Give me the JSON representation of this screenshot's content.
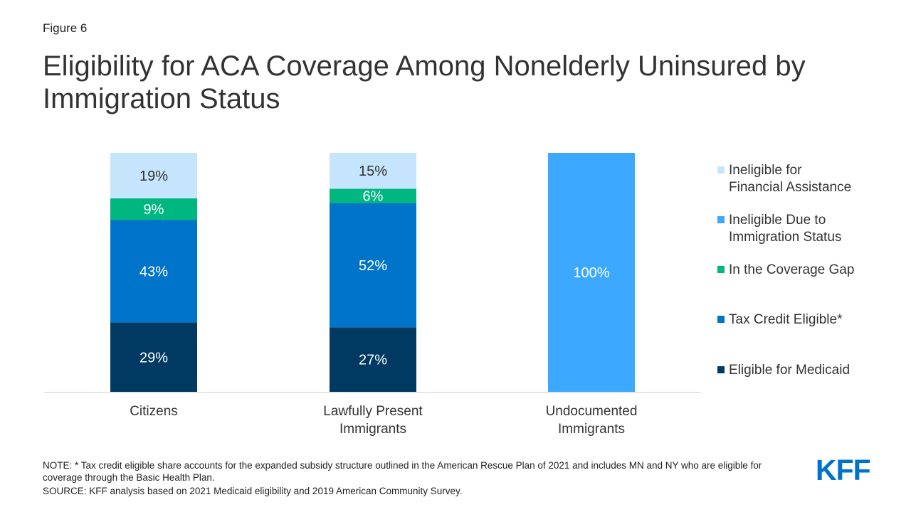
{
  "figure_label": "Figure 6",
  "title": "Eligibility for ACA Coverage Among Nonelderly Uninsured by Immigration Status",
  "note": "NOTE: * Tax credit eligible share accounts for the expanded subsidy structure outlined in the American Rescue Plan of 2021 and includes MN and NY who are eligible for coverage through the Basic Health Plan.",
  "source": "SOURCE: KFF analysis based on 2021 Medicaid eligibility and 2019 American Community Survey.",
  "logo_text": "KFF",
  "chart_data": {
    "type": "bar",
    "stacked": true,
    "title": "",
    "xlabel": "",
    "ylabel": "",
    "ylim": [
      0,
      100
    ],
    "grid": false,
    "legend_position": "right",
    "categories": [
      [
        "Citizens"
      ],
      [
        "Lawfully Present",
        "Immigrants"
      ],
      [
        "Undocumented",
        "Immigrants"
      ]
    ],
    "series": [
      {
        "name": "Eligible for Medicaid",
        "color": "#003a63",
        "values": [
          29,
          27,
          0
        ],
        "labels": [
          "29%",
          "27%",
          ""
        ],
        "label_color": "#ffffff"
      },
      {
        "name": "Tax Credit Eligible*",
        "color": "#0074c8",
        "values": [
          43,
          52,
          0
        ],
        "labels": [
          "43%",
          "52%",
          ""
        ],
        "label_color": "#ffffff"
      },
      {
        "name": "In the Coverage Gap",
        "color": "#00b780",
        "values": [
          9,
          6,
          0
        ],
        "labels": [
          "9%",
          "6%",
          ""
        ],
        "label_color": "#ffffff"
      },
      {
        "name": "Ineligible Due to Immigration Status",
        "color": "#3ca8ff",
        "values": [
          0,
          0,
          100
        ],
        "labels": [
          "",
          "",
          "100%"
        ],
        "label_color": "#ffffff"
      },
      {
        "name": "Ineligible for Financial Assistance",
        "color": "#c5e5fc",
        "values": [
          19,
          15,
          0
        ],
        "labels": [
          "19%",
          "15%",
          ""
        ],
        "label_color": "#333333"
      }
    ],
    "legend": [
      {
        "label": [
          "Ineligible for",
          "Financial Assistance"
        ],
        "color": "#c5e5fc"
      },
      {
        "label": [
          "Ineligible Due to",
          "Immigration Status"
        ],
        "color": "#3ca8ff"
      },
      {
        "label": [
          "In the Coverage Gap"
        ],
        "color": "#00b780"
      },
      {
        "label": [
          "Tax Credit Eligible*"
        ],
        "color": "#0074c8"
      },
      {
        "label": [
          "Eligible for Medicaid"
        ],
        "color": "#003a63"
      }
    ]
  }
}
